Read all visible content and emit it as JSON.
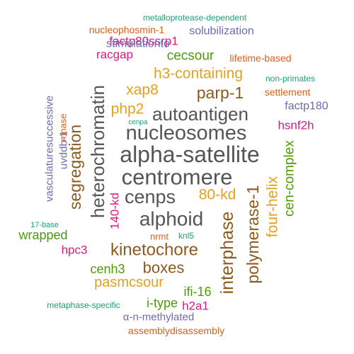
{
  "colors": {
    "dark_gray": "#555555",
    "brown": "#8B5A1E",
    "gold": "#E3A11D",
    "green": "#4E9A06",
    "magenta": "#D81B80",
    "purple": "#6C6CB0",
    "orange": "#D9601A",
    "teal": "#1B9E77"
  },
  "words": [
    {
      "text": "alpha-satellite",
      "color": "dark_gray"
    },
    {
      "text": "centromere",
      "color": "dark_gray"
    },
    {
      "text": "nucleosomes",
      "color": "dark_gray"
    },
    {
      "text": "autoantigen",
      "color": "dark_gray"
    },
    {
      "text": "alphoid",
      "color": "dark_gray"
    },
    {
      "text": "cenps",
      "color": "dark_gray"
    },
    {
      "text": "heterochromatin",
      "color": "dark_gray"
    },
    {
      "text": "kinetochore",
      "color": "brown"
    },
    {
      "text": "parp-1",
      "color": "brown"
    },
    {
      "text": "interphase",
      "color": "brown"
    },
    {
      "text": "polymerase-1",
      "color": "brown"
    },
    {
      "text": "segregation",
      "color": "brown"
    },
    {
      "text": "boxes",
      "color": "brown"
    },
    {
      "text": "h3-containing",
      "color": "gold"
    },
    {
      "text": "xap8",
      "color": "gold"
    },
    {
      "text": "php2",
      "color": "gold"
    },
    {
      "text": "80-kd",
      "color": "gold"
    },
    {
      "text": "four-helix",
      "color": "gold"
    },
    {
      "text": "pasmcsour",
      "color": "gold"
    },
    {
      "text": "cecsour",
      "color": "green"
    },
    {
      "text": "cen-complex",
      "color": "green"
    },
    {
      "text": "wrapped",
      "color": "green"
    },
    {
      "text": "cenh3",
      "color": "green"
    },
    {
      "text": "ifi-16",
      "color": "green"
    },
    {
      "text": "i-type",
      "color": "green"
    },
    {
      "text": "factp80ssrp1",
      "color": "magenta"
    },
    {
      "text": "racgap",
      "color": "magenta"
    },
    {
      "text": "hsnf2h",
      "color": "magenta"
    },
    {
      "text": "140-kd",
      "color": "magenta"
    },
    {
      "text": "hpc3",
      "color": "magenta"
    },
    {
      "text": "h2a1",
      "color": "magenta"
    },
    {
      "text": "solubilization",
      "color": "purple"
    },
    {
      "text": "stimulationto",
      "color": "purple"
    },
    {
      "text": "factp180",
      "color": "purple"
    },
    {
      "text": "vasculaturesuccessive",
      "color": "purple"
    },
    {
      "text": "uvddb-1",
      "color": "purple"
    },
    {
      "text": "α-n-methylated",
      "color": "purple"
    },
    {
      "text": "nucleophosmin-1",
      "color": "orange"
    },
    {
      "text": "lifetime-based",
      "color": "orange"
    },
    {
      "text": "settlement",
      "color": "orange"
    },
    {
      "text": "mnase",
      "color": "orange"
    },
    {
      "text": "nrmt",
      "color": "orange"
    },
    {
      "text": "assemblydisassembly",
      "color": "orange"
    },
    {
      "text": "metalloprotease-dependent",
      "color": "teal"
    },
    {
      "text": "non-primates",
      "color": "teal"
    },
    {
      "text": "cenpa",
      "color": "teal"
    },
    {
      "text": "17-base",
      "color": "teal"
    },
    {
      "text": "knl5",
      "color": "teal"
    },
    {
      "text": "metaphase-specific",
      "color": "teal"
    }
  ]
}
